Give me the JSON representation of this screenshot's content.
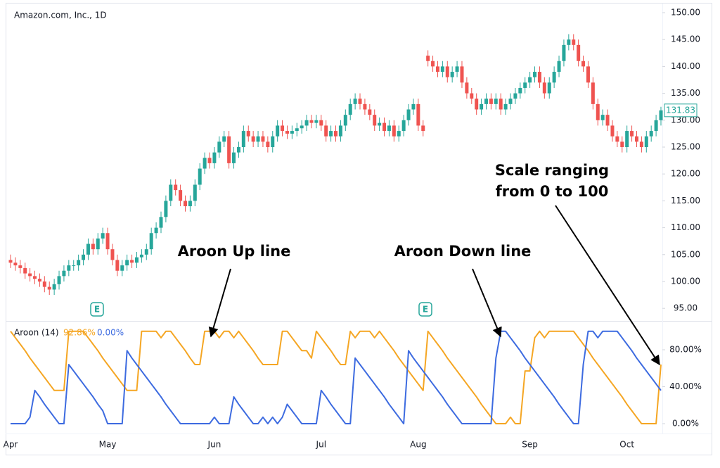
{
  "chart_data": {
    "type": "candlestick",
    "title": "Amazon.com, Inc., 1D",
    "up_color": "#26a69a",
    "down_color": "#ef5350",
    "categories": [
      "Apr",
      null,
      null,
      null,
      null,
      null,
      null,
      null,
      null,
      null,
      null,
      null,
      null,
      null,
      null,
      null,
      null,
      null,
      null,
      null,
      "May",
      null,
      null,
      null,
      null,
      null,
      null,
      null,
      null,
      null,
      null,
      null,
      null,
      null,
      null,
      null,
      null,
      null,
      null,
      null,
      null,
      null,
      "Jun",
      null,
      null,
      null,
      null,
      null,
      null,
      null,
      null,
      null,
      null,
      null,
      null,
      null,
      null,
      null,
      null,
      null,
      null,
      null,
      null,
      null,
      "Jul",
      null,
      null,
      null,
      null,
      null,
      null,
      null,
      null,
      null,
      null,
      null,
      null,
      null,
      null,
      null,
      null,
      null,
      null,
      null,
      "Aug",
      null,
      null,
      null,
      null,
      null,
      null,
      null,
      null,
      null,
      null,
      null,
      null,
      null,
      null,
      null,
      null,
      null,
      null,
      null,
      null,
      null,
      null,
      "Sep",
      null,
      null,
      null,
      null,
      null,
      null,
      null,
      null,
      null,
      null,
      null,
      null,
      null,
      null,
      null,
      null,
      null,
      null,
      null,
      "Oct",
      null,
      null,
      null,
      null,
      null,
      null,
      null
    ],
    "open": [
      104,
      103.5,
      103,
      102.5,
      101.5,
      101,
      100.5,
      100,
      99,
      98.5,
      99.5,
      101,
      102,
      103,
      103,
      104,
      105,
      107,
      106,
      108,
      109,
      106,
      104,
      102,
      103,
      104,
      103.5,
      104.5,
      105,
      106,
      109,
      110,
      112,
      115,
      118,
      117,
      115,
      114,
      115,
      118,
      121,
      123,
      122,
      124,
      126,
      127,
      122,
      124,
      125,
      128,
      127,
      126,
      127,
      126,
      125,
      127,
      129,
      128,
      127.5,
      128,
      128.5,
      129,
      130,
      129.5,
      130,
      129,
      127,
      128,
      127,
      129,
      131,
      133,
      134,
      133,
      132,
      131,
      129,
      129.5,
      128,
      129,
      127,
      128,
      130,
      132,
      133,
      129,
      142,
      141,
      140,
      139,
      140,
      138,
      139,
      140,
      137,
      135,
      134,
      132,
      133,
      134,
      133,
      134,
      132,
      133,
      134,
      135,
      136,
      137,
      138,
      139,
      137,
      135,
      137,
      139,
      141,
      144,
      145,
      144,
      141,
      140,
      137,
      133,
      130,
      131,
      129,
      127,
      126,
      125,
      128,
      127,
      126,
      125,
      127,
      128,
      130
    ],
    "high": [
      105,
      104.5,
      104,
      103.5,
      102.5,
      102,
      101.5,
      101,
      100,
      100.5,
      102,
      103,
      104,
      104,
      105,
      106,
      108,
      108,
      109,
      110,
      110,
      107,
      105,
      104,
      105,
      105,
      105.5,
      106,
      107,
      110,
      111,
      113,
      116,
      119,
      119,
      118,
      116,
      116,
      119,
      122,
      124,
      124,
      125,
      127,
      128,
      128,
      125,
      126,
      129,
      129,
      128,
      128,
      128,
      127,
      128,
      130,
      130,
      129,
      129,
      129.5,
      130,
      131,
      131,
      131,
      131,
      130,
      129,
      129,
      130,
      132,
      134,
      135,
      135,
      134,
      133,
      132,
      130.5,
      130.5,
      130,
      130,
      129,
      131,
      133,
      134,
      134,
      130,
      143,
      142,
      141,
      141,
      141,
      140,
      141,
      141,
      138,
      136,
      135,
      134,
      135,
      135,
      135,
      135,
      134,
      135,
      136,
      137,
      138,
      139,
      140,
      140,
      138,
      138,
      140,
      142,
      145,
      146,
      146,
      145,
      142,
      141,
      138,
      134,
      132,
      132,
      130,
      128,
      127,
      129,
      129,
      128,
      127,
      128,
      129,
      131,
      132.5
    ],
    "low": [
      102.5,
      102,
      101.5,
      100.5,
      100,
      99.5,
      99,
      98,
      97.5,
      97.5,
      98.5,
      100,
      101,
      102,
      102,
      103,
      104,
      105,
      105,
      107,
      105,
      103,
      101,
      101,
      102,
      102.5,
      102.5,
      103.5,
      104,
      105,
      108,
      109,
      111,
      114,
      116,
      114,
      113,
      113,
      114,
      117,
      120,
      121,
      121,
      123,
      125,
      121,
      121,
      123,
      124,
      126,
      125,
      125,
      125,
      124,
      124,
      126,
      127,
      126.5,
      126.5,
      127,
      127.5,
      128,
      128.5,
      128.5,
      128,
      126,
      126,
      126,
      126,
      128,
      130,
      132,
      132,
      131,
      130,
      128,
      128,
      127,
      127,
      126,
      126,
      127,
      129,
      131,
      128,
      127,
      140,
      139,
      138,
      138,
      137,
      137,
      138,
      136,
      134,
      133,
      131,
      131,
      132,
      132,
      132,
      131,
      131,
      132,
      133,
      134,
      135,
      136,
      137,
      136,
      134,
      134,
      136,
      138,
      140,
      143,
      143,
      140,
      139,
      136,
      132,
      129,
      129,
      128,
      126,
      125,
      124,
      124,
      126,
      125,
      124,
      124,
      126,
      127,
      129
    ],
    "close": [
      103.5,
      103,
      102.5,
      101.5,
      101,
      100.5,
      100,
      99,
      98.5,
      99.5,
      101,
      102,
      103,
      103,
      104,
      105,
      107,
      106,
      108,
      109,
      106,
      104,
      102,
      103,
      104,
      103.5,
      104.5,
      105,
      106,
      109,
      110,
      112,
      115,
      118,
      117,
      115,
      114,
      115,
      118,
      121,
      123,
      122,
      124,
      126,
      127,
      122,
      124,
      125,
      128,
      127,
      126,
      127,
      126,
      125,
      127,
      129,
      128,
      127.5,
      128,
      128.5,
      129,
      130,
      129.5,
      130,
      129,
      127,
      128,
      127,
      129,
      131,
      133,
      134,
      133,
      132,
      131,
      129,
      129.5,
      128,
      129,
      127,
      128,
      130,
      132,
      133,
      129,
      128,
      141,
      140,
      139,
      140,
      138,
      139,
      140,
      137,
      135,
      134,
      132,
      133,
      134,
      133,
      134,
      132,
      133,
      134,
      135,
      136,
      137,
      138,
      139,
      137,
      135,
      137,
      139,
      141,
      144,
      145,
      144,
      141,
      140,
      137,
      133,
      130,
      131,
      129,
      127,
      126,
      125,
      128,
      127,
      126,
      125,
      127,
      128,
      130,
      131.83
    ],
    "ylim": [
      92.8,
      151.7
    ],
    "yticks": [
      {
        "value": 95,
        "label": "95.00"
      },
      {
        "value": 100,
        "label": "100.00"
      },
      {
        "value": 105,
        "label": "105.00"
      },
      {
        "value": 110,
        "label": "110.00"
      },
      {
        "value": 115,
        "label": "115.00"
      },
      {
        "value": 120,
        "label": "120.00"
      },
      {
        "value": 125,
        "label": "125.00"
      },
      {
        "value": 130,
        "label": "130.00"
      },
      {
        "value": 135,
        "label": "135.00"
      },
      {
        "value": 140,
        "label": "140.00"
      },
      {
        "value": 145,
        "label": "145.00"
      },
      {
        "value": 150,
        "label": "150.00"
      }
    ],
    "events": [
      "E",
      "E"
    ],
    "indicator": {
      "type": "line",
      "name": "Aroon (14)",
      "ylim": [
        -9.9,
        109.7
      ],
      "yticks": [
        {
          "value": 0,
          "label": "0.00%"
        },
        {
          "value": 40,
          "label": "40.00%"
        },
        {
          "value": 80,
          "label": "80.00%"
        }
      ],
      "series": [
        {
          "color": "#f5a623",
          "legend_value": "92.86%",
          "values": [
            100,
            93,
            86,
            79,
            71,
            64,
            57,
            50,
            43,
            36,
            36,
            36,
            100,
            100,
            100,
            100,
            93,
            86,
            79,
            71,
            64,
            57,
            50,
            43,
            36,
            36,
            36,
            100,
            100,
            100,
            100,
            93,
            100,
            100,
            93,
            86,
            79,
            71,
            64,
            64,
            100,
            100,
            100,
            93,
            100,
            100,
            93,
            100,
            93,
            86,
            79,
            71,
            64,
            64,
            64,
            64,
            100,
            100,
            93,
            86,
            79,
            79,
            71,
            100,
            93,
            86,
            79,
            71,
            64,
            64,
            100,
            93,
            100,
            100,
            100,
            93,
            100,
            93,
            86,
            79,
            71,
            64,
            57,
            50,
            43,
            36,
            100,
            93,
            86,
            79,
            71,
            64,
            57,
            50,
            43,
            36,
            29,
            21,
            14,
            7,
            0,
            0,
            0,
            7,
            0,
            0,
            57,
            57,
            93,
            100,
            93,
            100,
            100,
            100,
            100,
            100,
            100,
            93,
            86,
            79,
            71,
            64,
            57,
            50,
            43,
            36,
            29,
            21,
            14,
            7,
            0,
            0,
            0,
            0,
            64
          ]
        },
        {
          "color": "#3d6be0",
          "legend_value": "0.00%",
          "values": [
            0,
            0,
            0,
            0,
            7,
            36,
            29,
            21,
            14,
            7,
            0,
            0,
            64,
            57,
            50,
            43,
            36,
            29,
            21,
            14,
            0,
            0,
            0,
            0,
            79,
            71,
            64,
            57,
            50,
            43,
            36,
            29,
            21,
            14,
            7,
            0,
            0,
            0,
            0,
            0,
            0,
            0,
            7,
            0,
            0,
            0,
            29,
            21,
            14,
            7,
            0,
            0,
            7,
            0,
            7,
            0,
            7,
            21,
            14,
            7,
            0,
            0,
            0,
            0,
            36,
            29,
            21,
            14,
            7,
            0,
            0,
            71,
            64,
            57,
            50,
            43,
            36,
            29,
            21,
            14,
            7,
            0,
            79,
            71,
            64,
            57,
            50,
            43,
            36,
            29,
            21,
            14,
            7,
            0,
            0,
            0,
            0,
            0,
            0,
            0,
            71,
            100,
            100,
            93,
            86,
            79,
            71,
            64,
            57,
            50,
            43,
            36,
            29,
            21,
            14,
            7,
            0,
            0,
            64,
            100,
            100,
            93,
            100,
            100,
            100,
            100,
            93,
            86,
            79,
            71,
            64,
            57,
            50,
            43,
            36
          ]
        }
      ]
    },
    "annotations": [
      "Aroon Up line",
      "Aroon Down line",
      "Scale ranging",
      "from 0 to 100"
    ]
  }
}
